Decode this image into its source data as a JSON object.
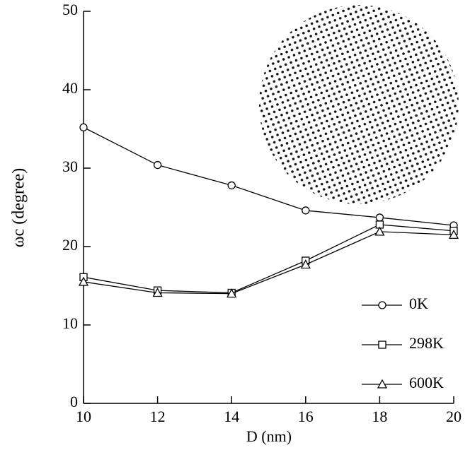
{
  "chart_data": {
    "type": "line",
    "x_label": "D (nm)",
    "y_label": "ωc (degree)",
    "x": [
      10,
      12,
      14,
      16,
      18,
      20
    ],
    "series": [
      {
        "name": "0K",
        "color": "#000000",
        "marker": "circle",
        "values": [
          35.2,
          30.4,
          27.8,
          24.6,
          23.7,
          22.7
        ]
      },
      {
        "name": "298K",
        "color": "#000000",
        "marker": "square",
        "values": [
          16.1,
          14.4,
          14.1,
          18.2,
          22.8,
          22.0
        ]
      },
      {
        "name": "600K",
        "color": "#000000",
        "marker": "triangle",
        "values": [
          15.5,
          14.1,
          14.0,
          17.7,
          21.9,
          21.5
        ]
      }
    ],
    "xlim": [
      10,
      20
    ],
    "xticks": [
      10,
      12,
      14,
      16,
      18,
      20
    ],
    "ylim": [
      0,
      50
    ],
    "yticks": [
      0,
      10,
      20,
      30,
      40,
      50
    ],
    "legend": "lower right",
    "grid": false
  }
}
